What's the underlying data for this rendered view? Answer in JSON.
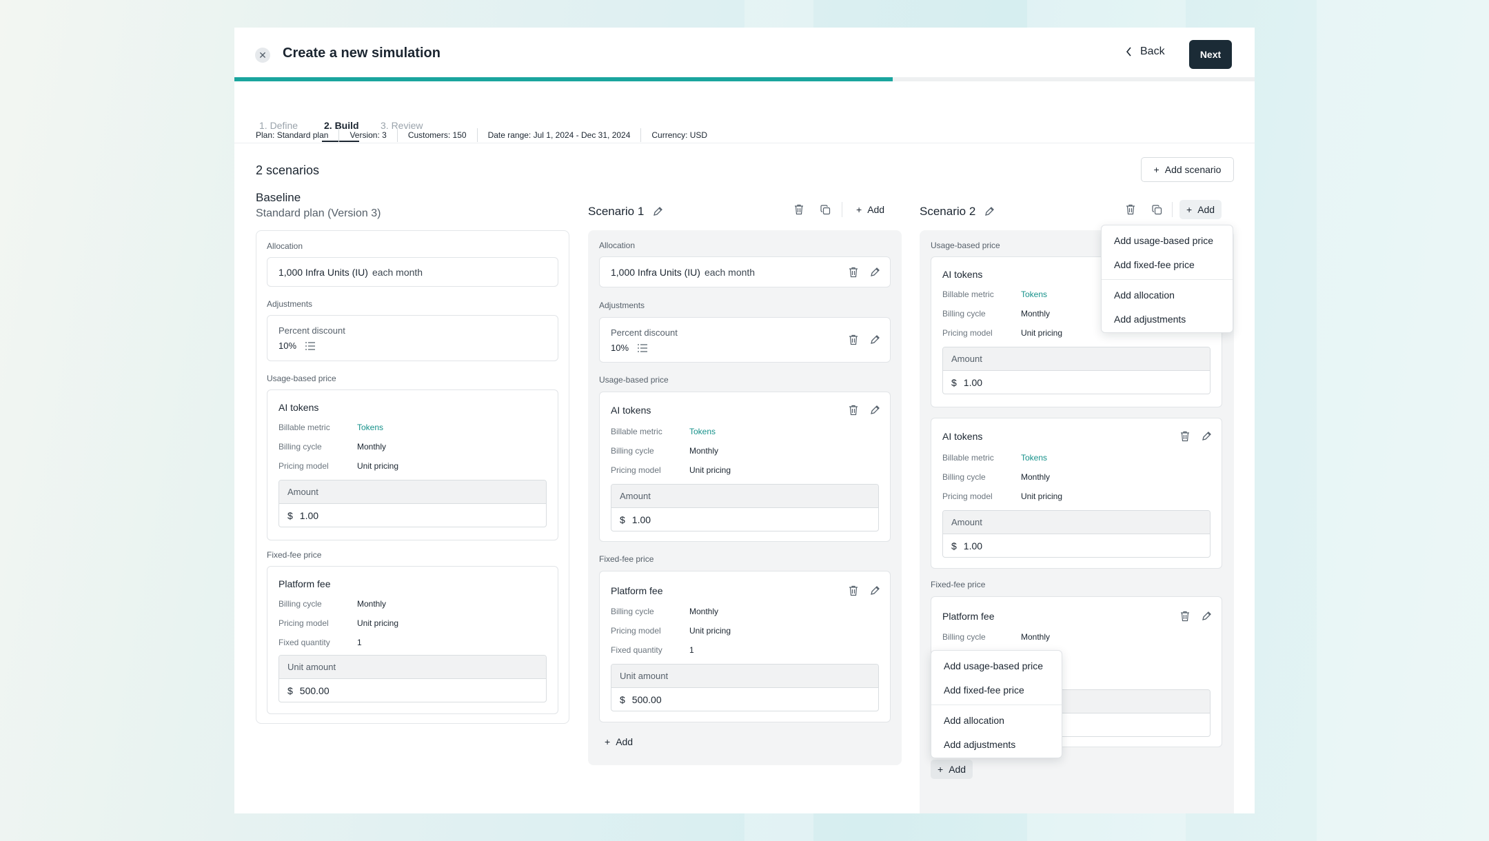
{
  "header": {
    "title": "Create a new simulation",
    "back_label": "Back",
    "next_label": "Next",
    "progress_fraction": 0.645
  },
  "tabs": [
    {
      "label": "1. Define"
    },
    {
      "label": "2. Build"
    },
    {
      "label": "3. Review"
    }
  ],
  "meta": {
    "plan_k": "Plan:",
    "plan_v": "Standard plan",
    "version_k": "Version:",
    "version_v": "3",
    "customers_k": "Customers:",
    "customers_v": "150",
    "range_k": "Date range:",
    "range_v": "Jul 1, 2024 - Dec 31, 2024",
    "currency_k": "Currency:",
    "currency_v": "USD"
  },
  "scenarios_count": "2 scenarios",
  "add_scenario_label": "Add scenario",
  "add_label": "Add",
  "baseline": {
    "title": "Baseline",
    "subtitle": "Standard plan (Version 3)",
    "allocation_label": "Allocation",
    "allocation_value": "1,000 Infra Units (IU)",
    "allocation_suffix": "each month",
    "adjustments_label": "Adjustments",
    "discount_label": "Percent discount",
    "discount_value": "10%",
    "usage_label": "Usage-based price",
    "usage_title": "AI tokens",
    "fixed_label": "Fixed-fee price",
    "fixed_title": "Platform fee"
  },
  "fields": {
    "billable_metric": "Billable metric",
    "billable_metric_v": "Tokens",
    "billing_cycle": "Billing cycle",
    "billing_cycle_v": "Monthly",
    "pricing_model": "Pricing model",
    "pricing_model_v": "Unit pricing",
    "fixed_quantity": "Fixed quantity",
    "fixed_quantity_v": "1",
    "amount": "Amount",
    "unit_amount": "Unit amount",
    "currency_symbol": "$",
    "amount_v": "1.00",
    "unit_amount_v": "500.00"
  },
  "scenario1": {
    "title": "Scenario 1"
  },
  "scenario2": {
    "title": "Scenario 2"
  },
  "menu": {
    "add_usage": "Add usage-based price",
    "add_fixed": "Add fixed-fee price",
    "add_allocation": "Add allocation",
    "add_adjustments": "Add adjustments"
  }
}
